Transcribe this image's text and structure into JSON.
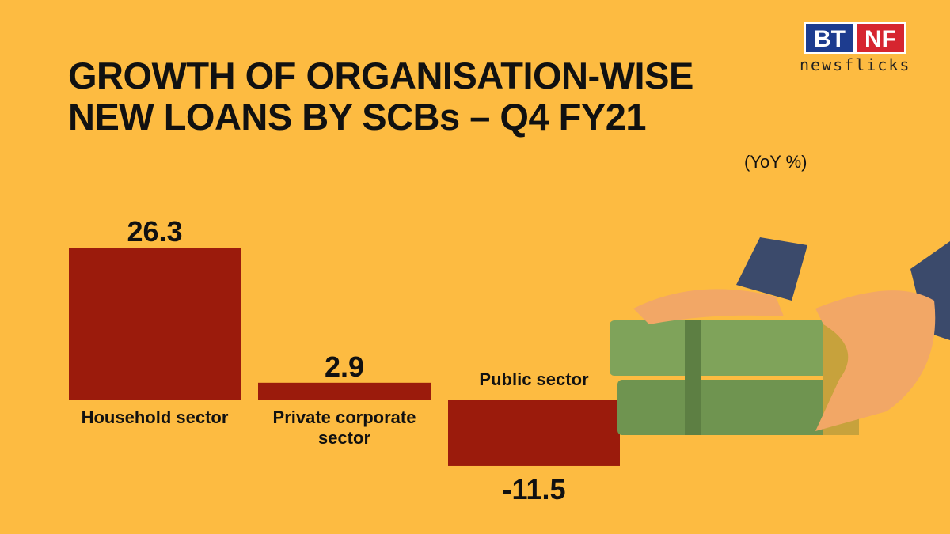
{
  "title": "GROWTH OF ORGANISATION-WISE NEW LOANS BY SCBs – Q4 FY21",
  "unit_label": "(YoY %)",
  "logo": {
    "brand": "BT NF",
    "tagline": "newsflicks"
  },
  "colors": {
    "background": "#fdbb41",
    "bar": "#9b1b0c"
  },
  "chart_data": {
    "type": "bar",
    "title": "GROWTH OF ORGANISATION-WISE NEW LOANS BY SCBs – Q4 FY21",
    "ylabel": "(YoY %)",
    "categories": [
      "Household sector",
      "Private corporate sector",
      "Public sector"
    ],
    "category_lines": [
      [
        "Household sector"
      ],
      [
        "Private corporate",
        "sector"
      ],
      [
        "Public sector"
      ]
    ],
    "values": [
      26.3,
      2.9,
      -11.5
    ],
    "value_labels": [
      "26.3",
      "2.9",
      "-11.5"
    ],
    "ylim": [
      -11.5,
      26.3
    ],
    "grid": false
  }
}
